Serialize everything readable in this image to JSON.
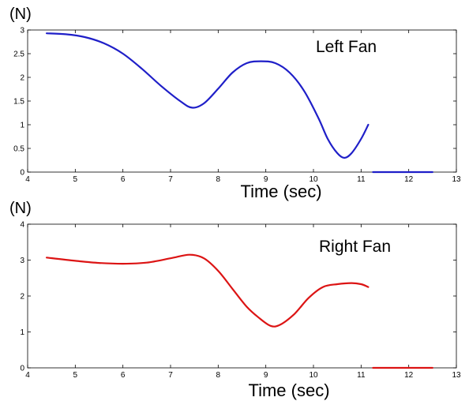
{
  "chart_data": [
    {
      "type": "line",
      "title": "Left Fan",
      "ylabel": "(N)",
      "xlabel": "Time (sec)",
      "xlim": [
        4,
        13
      ],
      "ylim": [
        0,
        3
      ],
      "xticks": [
        "4",
        "5",
        "6",
        "7",
        "8",
        "9",
        "10",
        "11",
        "12",
        "13"
      ],
      "yticks": [
        "0",
        "0.5",
        "1",
        "1.5",
        "2",
        "2.5",
        "3"
      ],
      "color": "#1f1fc8",
      "series": [
        {
          "values": [
            [
              4.4,
              2.93
            ],
            [
              4.8,
              2.91
            ],
            [
              5.2,
              2.85
            ],
            [
              5.6,
              2.72
            ],
            [
              6.0,
              2.5
            ],
            [
              6.4,
              2.18
            ],
            [
              6.8,
              1.82
            ],
            [
              7.2,
              1.5
            ],
            [
              7.45,
              1.36
            ],
            [
              7.7,
              1.45
            ],
            [
              8.0,
              1.76
            ],
            [
              8.3,
              2.1
            ],
            [
              8.6,
              2.3
            ],
            [
              8.9,
              2.34
            ],
            [
              9.2,
              2.3
            ],
            [
              9.5,
              2.1
            ],
            [
              9.8,
              1.72
            ],
            [
              10.1,
              1.15
            ],
            [
              10.3,
              0.7
            ],
            [
              10.5,
              0.4
            ],
            [
              10.65,
              0.3
            ],
            [
              10.8,
              0.4
            ],
            [
              11.0,
              0.7
            ],
            [
              11.15,
              1.0
            ]
          ]
        },
        {
          "values": [
            [
              11.25,
              0
            ],
            [
              12.5,
              0
            ]
          ]
        }
      ]
    },
    {
      "type": "line",
      "title": "Right Fan",
      "ylabel": "(N)",
      "xlabel": "Time (sec)",
      "xlim": [
        4,
        13
      ],
      "ylim": [
        0,
        4
      ],
      "xticks": [
        "4",
        "5",
        "6",
        "7",
        "8",
        "9",
        "10",
        "11",
        "12",
        "13"
      ],
      "yticks": [
        "0",
        "1",
        "2",
        "3",
        "4"
      ],
      "color": "#dc1414",
      "series": [
        {
          "values": [
            [
              4.4,
              3.07
            ],
            [
              5.0,
              2.98
            ],
            [
              5.5,
              2.92
            ],
            [
              6.0,
              2.9
            ],
            [
              6.5,
              2.93
            ],
            [
              7.0,
              3.05
            ],
            [
              7.4,
              3.15
            ],
            [
              7.7,
              3.05
            ],
            [
              8.0,
              2.7
            ],
            [
              8.3,
              2.2
            ],
            [
              8.6,
              1.7
            ],
            [
              8.85,
              1.4
            ],
            [
              9.1,
              1.17
            ],
            [
              9.3,
              1.2
            ],
            [
              9.6,
              1.5
            ],
            [
              9.9,
              1.95
            ],
            [
              10.2,
              2.25
            ],
            [
              10.5,
              2.33
            ],
            [
              10.8,
              2.36
            ],
            [
              11.0,
              2.33
            ],
            [
              11.15,
              2.25
            ]
          ]
        },
        {
          "values": [
            [
              11.25,
              0
            ],
            [
              12.5,
              0
            ]
          ]
        }
      ]
    }
  ]
}
